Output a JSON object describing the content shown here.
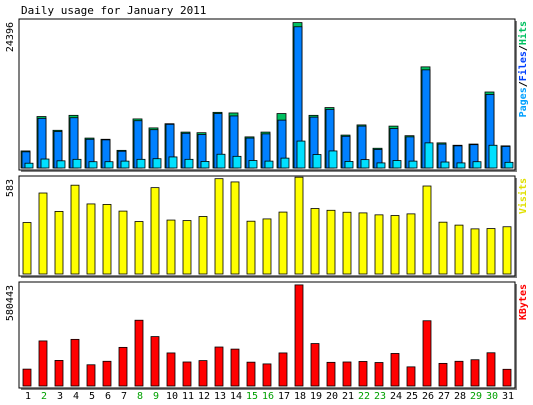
{
  "chart_data": {
    "type": "bar",
    "title": "Daily usage for January 2011",
    "days": [
      "1",
      "2",
      "3",
      "4",
      "5",
      "6",
      "7",
      "8",
      "9",
      "10",
      "11",
      "12",
      "13",
      "14",
      "15",
      "16",
      "17",
      "18",
      "19",
      "20",
      "21",
      "22",
      "23",
      "24",
      "25",
      "26",
      "27",
      "28",
      "29",
      "30",
      "31"
    ],
    "weekend_days": [
      2,
      8,
      9,
      15,
      16,
      22,
      23,
      29,
      30
    ],
    "panels": [
      {
        "key": "hits_files_pages",
        "ylabel_max": "24396",
        "ymax": 24396,
        "legend": [
          "Pages",
          "/",
          "Files",
          "/",
          "Hits"
        ],
        "legend_colors": [
          "#00a0ff",
          "#000000",
          "#0040ff",
          "#000000",
          "#00c060"
        ],
        "series": [
          {
            "name": "Hits",
            "color": "#00c060",
            "values": [
              2850,
              8600,
              6300,
              8800,
              5000,
              4800,
              2950,
              8200,
              6700,
              7400,
              6000,
              5900,
              9300,
              9200,
              5200,
              6000,
              9100,
              24300,
              8800,
              10100,
              5500,
              7200,
              3300,
              7000,
              5400,
              16900,
              4200,
              3800,
              4000,
              12700,
              3700
            ]
          },
          {
            "name": "Files",
            "color": "#0080ff",
            "values": [
              2700,
              8300,
              6100,
              8400,
              4800,
              4700,
              2800,
              7900,
              6400,
              7300,
              5800,
              5600,
              9100,
              8700,
              5000,
              5700,
              8000,
              23600,
              8500,
              9800,
              5300,
              7000,
              3100,
              6600,
              5200,
              16400,
              4000,
              3700,
              3900,
              12300,
              3600
            ]
          },
          {
            "name": "Pages",
            "color": "#00e0ff",
            "values": [
              800,
              1500,
              1200,
              1450,
              1050,
              1050,
              1150,
              1450,
              1550,
              1850,
              1450,
              1100,
              2300,
              1950,
              1250,
              1150,
              1650,
              4500,
              2250,
              2850,
              1100,
              1400,
              850,
              1250,
              1150,
              4200,
              1000,
              850,
              1050,
              3800,
              950
            ]
          }
        ]
      },
      {
        "key": "visits",
        "ylabel_max": "583",
        "ymax": 583,
        "legend": [
          "Visits"
        ],
        "legend_colors": [
          "#e0e000"
        ],
        "series": [
          {
            "name": "Visits",
            "color": "#ffff00",
            "values": [
              316,
              497,
              384,
              545,
              430,
              427,
              386,
              322,
              530,
              331,
              328,
              353,
              585,
              565,
              324,
              338,
              380,
              594,
              402,
              391,
              379,
              375,
              363,
              359,
              369,
              540,
              318,
              300,
              277,
              279,
              290
            ]
          }
        ]
      },
      {
        "key": "kbytes",
        "ylabel_max": "580443",
        "ymax": 580443,
        "legend": [
          "KBytes"
        ],
        "legend_colors": [
          "#ff0000"
        ],
        "series": [
          {
            "name": "KBytes",
            "color": "#ff0000",
            "values": [
              97000,
              259000,
              147000,
              268000,
              122000,
              142000,
              222000,
              378000,
              284000,
              190000,
              138000,
              146000,
              224000,
              212000,
              137000,
              127000,
              190000,
              581000,
              244000,
              136000,
              138000,
              141000,
              135000,
              187000,
              110000,
              375000,
              130000,
              142000,
              151000,
              191000,
              96000
            ]
          }
        ]
      }
    ]
  }
}
